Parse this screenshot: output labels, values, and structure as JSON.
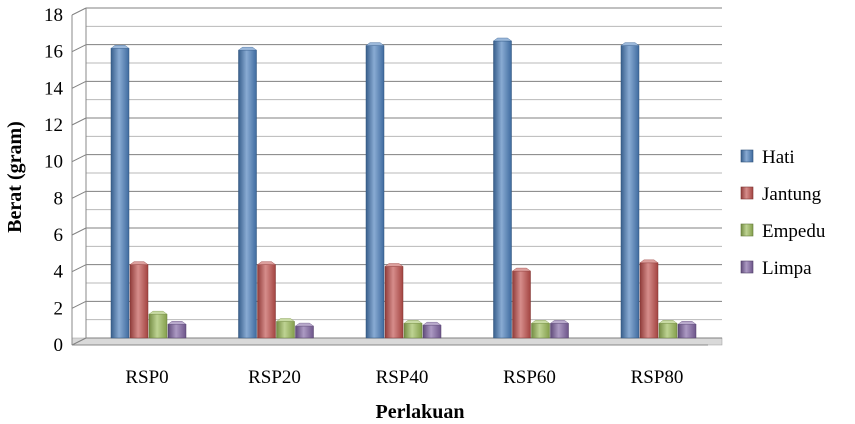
{
  "chart_data": {
    "type": "bar",
    "title": "",
    "xlabel": "Perlakuan",
    "ylabel": "Berat (gram)",
    "ylim": [
      0,
      18
    ],
    "ytick_step": 2,
    "grid": true,
    "legend_position": "right",
    "categories": [
      "RSP0",
      "RSP20",
      "RSP40",
      "RSP60",
      "RSP80"
    ],
    "series": [
      {
        "name": "Hati",
        "color": "#4A7EBB",
        "values": [
          15.8,
          15.7,
          15.95,
          16.2,
          15.95
        ]
      },
      {
        "name": "Jantung",
        "color": "#C0504D",
        "values": [
          4.0,
          4.0,
          3.9,
          3.65,
          4.1
        ]
      },
      {
        "name": "Empedu",
        "color": "#9BBB59",
        "values": [
          1.3,
          0.9,
          0.8,
          0.8,
          0.8
        ]
      },
      {
        "name": "Limpa",
        "color": "#8064A2",
        "values": [
          0.75,
          0.65,
          0.7,
          0.8,
          0.75
        ]
      }
    ]
  }
}
